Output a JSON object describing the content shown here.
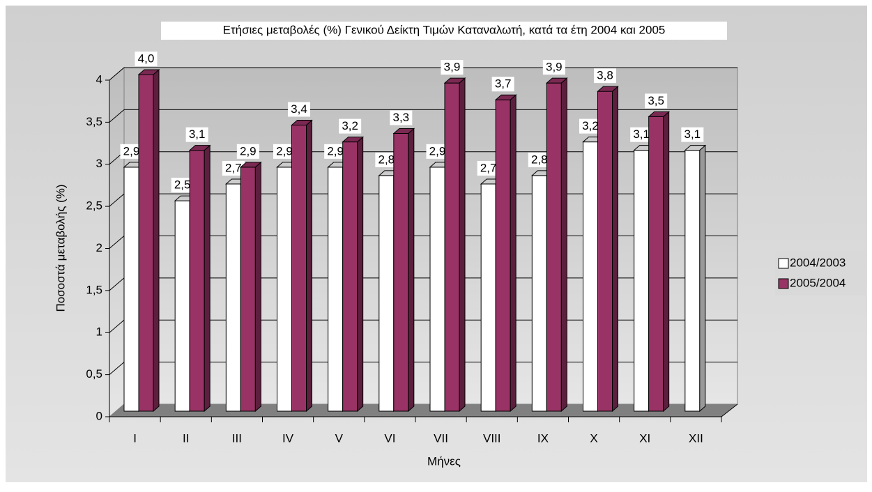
{
  "chart_data": {
    "type": "bar3d",
    "title": "Ετήσιες μεταβολές (%) Γενικού Δείκτη Τιμών Καταναλωτή, κατά τα έτη 2004 και 2005",
    "x_label": "Μήνες",
    "y_label": "Ποσοστά μεταβολής (%)",
    "categories": [
      "I",
      "II",
      "III",
      "IV",
      "V",
      "VI",
      "VII",
      "VIII",
      "IX",
      "X",
      "XI",
      "XII"
    ],
    "series": [
      {
        "name": "2004/2003",
        "color": "#ffffff",
        "values": [
          2.9,
          2.5,
          2.7,
          2.9,
          2.9,
          2.8,
          2.9,
          2.7,
          2.8,
          3.2,
          3.1,
          3.1
        ],
        "value_labels": [
          "2,9",
          "2,5",
          "2,7",
          "2,9",
          "2,9",
          "2,8",
          "2,9",
          "2,7",
          "2,8",
          "3,2",
          "3,1",
          "3,1"
        ]
      },
      {
        "name": "2005/2004",
        "color": "#993366",
        "values": [
          4.0,
          3.1,
          2.9,
          3.4,
          3.2,
          3.3,
          3.9,
          3.7,
          3.9,
          3.8,
          3.5,
          null
        ],
        "value_labels": [
          "4,0",
          "3,1",
          "2,9",
          "3,4",
          "3,2",
          "3,3",
          "3,9",
          "3,7",
          "3,9",
          "3,8",
          "3,5",
          null
        ]
      }
    ],
    "ylim": [
      0,
      4
    ],
    "yticks": [
      0,
      {
        "value": 0.5,
        "label": "0,5"
      },
      1,
      {
        "value": 1.5,
        "label": "1,5"
      },
      2,
      {
        "value": 2.5,
        "label": "2,5"
      },
      3,
      {
        "value": 3.5,
        "label": "3,5"
      },
      4
    ],
    "grid": true,
    "legend": "right"
  }
}
